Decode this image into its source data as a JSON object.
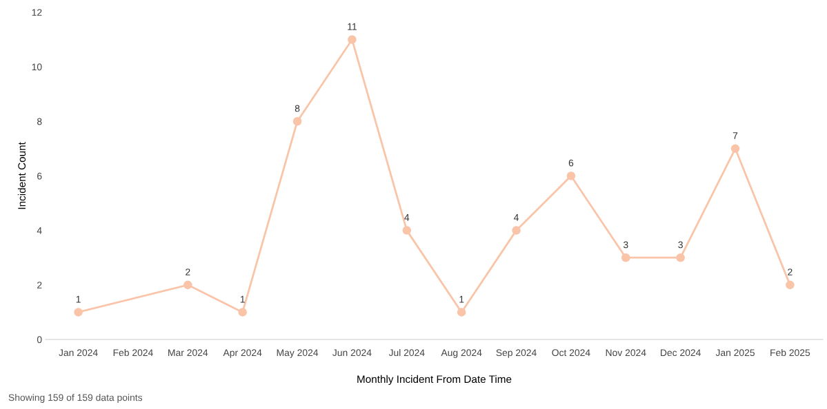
{
  "chart_data": {
    "type": "line",
    "xlabel": "Monthly Incident From Date Time",
    "ylabel": "Incident Count",
    "categories": [
      "Jan 2024",
      "Feb 2024",
      "Mar 2024",
      "Apr 2024",
      "May 2024",
      "Jun 2024",
      "Jul 2024",
      "Aug 2024",
      "Sep 2024",
      "Oct 2024",
      "Nov 2024",
      "Dec 2024",
      "Jan 2025",
      "Feb 2025"
    ],
    "series": [
      {
        "color": "#f9c4a8",
        "values": [
          1,
          null,
          2,
          1,
          8,
          11,
          4,
          1,
          4,
          6,
          3,
          3,
          7,
          2
        ]
      }
    ],
    "ylim": [
      0,
      12
    ],
    "yticks": [
      0,
      2,
      4,
      6,
      8,
      10,
      12
    ],
    "grid": false,
    "legend": false,
    "marker": "circle",
    "line_style": "solid",
    "data_labels": true,
    "annotations": [
      "Showing 159 of 159 data points"
    ]
  }
}
